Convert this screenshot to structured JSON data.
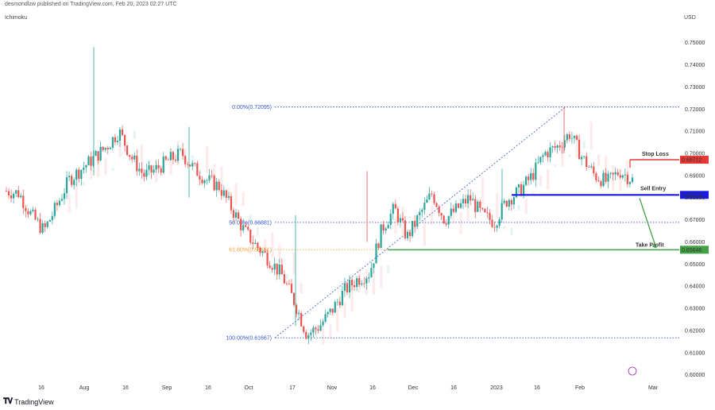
{
  "header": {
    "publisher_text": "desmondlzw published on TradingView.com, Feb 20, 2023 02:27 UTC",
    "indicator": "Ichimoku",
    "currency": "USD"
  },
  "footer": {
    "logo_text": "TradingView",
    "logo_icon": "tradingview-logo-icon"
  },
  "colors": {
    "up": "#26a69a",
    "down": "#ef5350",
    "stop_loss": "#e53935",
    "sell_entry": "#1a1ae6",
    "take_profit": "#43a047",
    "fib": "#3355cc",
    "fib_618": "#f0a030"
  },
  "chart_data": {
    "type": "candlestick",
    "title": "",
    "ylabel": "USD",
    "ylim": [
      0.597,
      0.7585
    ],
    "y_ticks": [
      "0.75000",
      "0.74000",
      "0.73000",
      "0.72000",
      "0.71000",
      "0.70000",
      "0.69000",
      "0.68000",
      "0.67000",
      "0.66000",
      "0.65000",
      "0.64000",
      "0.63000",
      "0.62000",
      "0.61000",
      "0.60000"
    ],
    "x_ticks": [
      "16",
      "Aug",
      "16",
      "Sep",
      "16",
      "Oct",
      "17",
      "Nov",
      "16",
      "Dec",
      "16",
      "2023",
      "16",
      "Feb",
      "Mar"
    ],
    "series_outline": [
      0.683,
      0.682,
      0.672,
      0.665,
      0.676,
      0.688,
      0.693,
      0.698,
      0.703,
      0.71,
      0.698,
      0.69,
      0.693,
      0.697,
      0.7,
      0.693,
      0.688,
      0.685,
      0.675,
      0.665,
      0.658,
      0.652,
      0.645,
      0.633,
      0.618,
      0.622,
      0.629,
      0.638,
      0.643,
      0.646,
      0.666,
      0.675,
      0.662,
      0.672,
      0.682,
      0.67,
      0.675,
      0.68,
      0.672,
      0.669,
      0.679,
      0.683,
      0.69,
      0.7,
      0.703,
      0.709,
      0.698,
      0.69,
      0.687,
      0.692,
      0.688
    ],
    "fib_levels": [
      {
        "label": "0.00%(0.72095)",
        "value": 0.72095
      },
      {
        "label": "50.00%(0.66881)",
        "value": 0.66881
      },
      {
        "label": "61.80%(0.65651)",
        "value": 0.65651
      },
      {
        "label": "100.00%(0.61667)",
        "value": 0.61667
      }
    ],
    "levels": [
      {
        "name": "Stop Loss",
        "value": 0.69712,
        "value_label": "0.69712"
      },
      {
        "name": "Sell Entry",
        "value": 0.68123,
        "value_label": "0.68123"
      },
      {
        "name": "Take Profit",
        "value": 0.65646,
        "value_label": "0.65646"
      }
    ],
    "grid": false
  }
}
